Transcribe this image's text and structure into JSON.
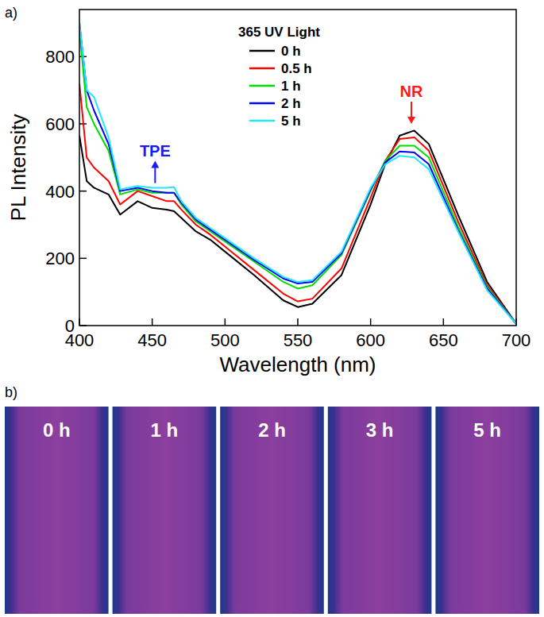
{
  "chart_data": {
    "type": "line",
    "panel_label": "a)",
    "xlabel": "Wavelength (nm)",
    "ylabel": "PL Intensity",
    "legend_title": "365 UV Light",
    "legend": "top",
    "xlim": [
      400,
      700
    ],
    "xticks": [
      400,
      450,
      500,
      550,
      600,
      650,
      700
    ],
    "ylim": [
      0,
      940
    ],
    "yticks": [
      0,
      200,
      400,
      600,
      800
    ],
    "x": [
      400,
      405,
      410,
      420,
      428,
      440,
      450,
      460,
      465,
      470,
      480,
      490,
      500,
      520,
      540,
      550,
      560,
      580,
      600,
      610,
      620,
      630,
      640,
      660,
      680,
      700
    ],
    "series": [
      {
        "name": "0 h",
        "color": "#000000",
        "values": [
          565,
          430,
          410,
          390,
          330,
          370,
          350,
          345,
          340,
          320,
          280,
          255,
          220,
          150,
          75,
          55,
          65,
          150,
          360,
          480,
          565,
          580,
          540,
          330,
          130,
          5
        ]
      },
      {
        "name": "0.5 h",
        "color": "#ff0000",
        "values": [
          720,
          500,
          470,
          430,
          360,
          400,
          385,
          370,
          370,
          345,
          300,
          270,
          235,
          165,
          95,
          72,
          80,
          170,
          380,
          490,
          555,
          560,
          520,
          310,
          120,
          5
        ]
      },
      {
        "name": "1 h",
        "color": "#00dd00",
        "values": [
          880,
          650,
          600,
          520,
          390,
          405,
          395,
          395,
          395,
          360,
          310,
          280,
          250,
          190,
          130,
          110,
          120,
          210,
          400,
          490,
          535,
          535,
          500,
          295,
          115,
          5
        ]
      },
      {
        "name": "2 h",
        "color": "#0000ff",
        "values": [
          900,
          700,
          640,
          540,
          400,
          410,
          400,
          395,
          395,
          365,
          315,
          285,
          255,
          195,
          140,
          125,
          130,
          215,
          405,
          485,
          518,
          515,
          480,
          285,
          110,
          5
        ]
      },
      {
        "name": "5 h",
        "color": "#22e8ff",
        "values": [
          900,
          700,
          680,
          560,
          405,
          415,
          410,
          410,
          412,
          370,
          320,
          290,
          260,
          200,
          145,
          130,
          135,
          220,
          410,
          480,
          505,
          500,
          465,
          280,
          105,
          5
        ]
      }
    ],
    "annotations": [
      {
        "text": "TPE",
        "x": 452,
        "y": 490,
        "direction": "up",
        "color": "#1a1aff"
      },
      {
        "text": "NR",
        "x": 628,
        "y": 600,
        "direction": "down",
        "color": "#ff1a1a"
      }
    ]
  },
  "photos": {
    "panel_label": "b)",
    "labels": [
      "0 h",
      "1 h",
      "2 h",
      "3 h",
      "5 h"
    ]
  }
}
